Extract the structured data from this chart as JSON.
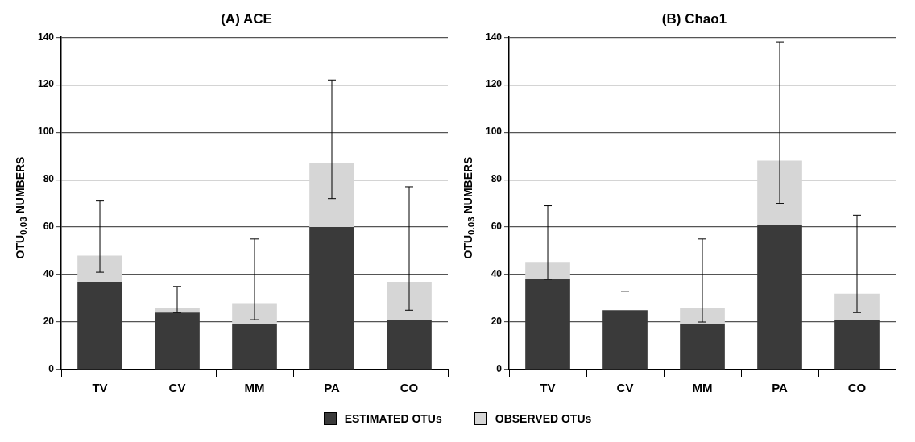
{
  "chart_data": [
    {
      "type": "bar",
      "title": "(A) ACE",
      "ylabel": "OTU$_{0.03}$ NUMBERS",
      "categories": [
        "TV",
        "CV",
        "MM",
        "PA",
        "CO"
      ],
      "stacked": true,
      "ylim": [
        0,
        140
      ],
      "yticks": [
        0,
        20,
        40,
        60,
        80,
        100,
        120,
        140
      ],
      "grid": "y",
      "legend": "bottom",
      "series": [
        {
          "name": "ESTIMATED OTUs",
          "color": "#3a3a3a",
          "values": [
            37,
            24,
            19,
            60,
            21
          ]
        },
        {
          "name": "OBSERVED OTUs",
          "color": "#d6d6d6",
          "values": [
            11,
            2,
            9,
            27,
            16
          ],
          "errors": [
            [
              41,
              71
            ],
            [
              24,
              35
            ],
            [
              21,
              55
            ],
            [
              72,
              122
            ],
            [
              25,
              77
            ]
          ]
        }
      ]
    },
    {
      "type": "bar",
      "title": "(B) Chao1",
      "ylabel": "OTU$_{0.03}$ NUMBERS",
      "categories": [
        "TV",
        "CV",
        "MM",
        "PA",
        "CO"
      ],
      "stacked": true,
      "ylim": [
        0,
        140
      ],
      "yticks": [
        0,
        20,
        40,
        60,
        80,
        100,
        120,
        140
      ],
      "grid": "y",
      "series": [
        {
          "color": "#3a3a3a",
          "values": [
            38,
            25,
            19,
            61,
            21
          ]
        },
        {
          "color": "#d6d6d6",
          "values": [
            7,
            0,
            7,
            27,
            11
          ],
          "errors": [
            [
              38,
              69
            ],
            [
              33,
              33
            ],
            [
              20,
              55
            ],
            [
              70,
              138
            ],
            [
              24,
              65
            ]
          ]
        }
      ]
    }
  ]
}
